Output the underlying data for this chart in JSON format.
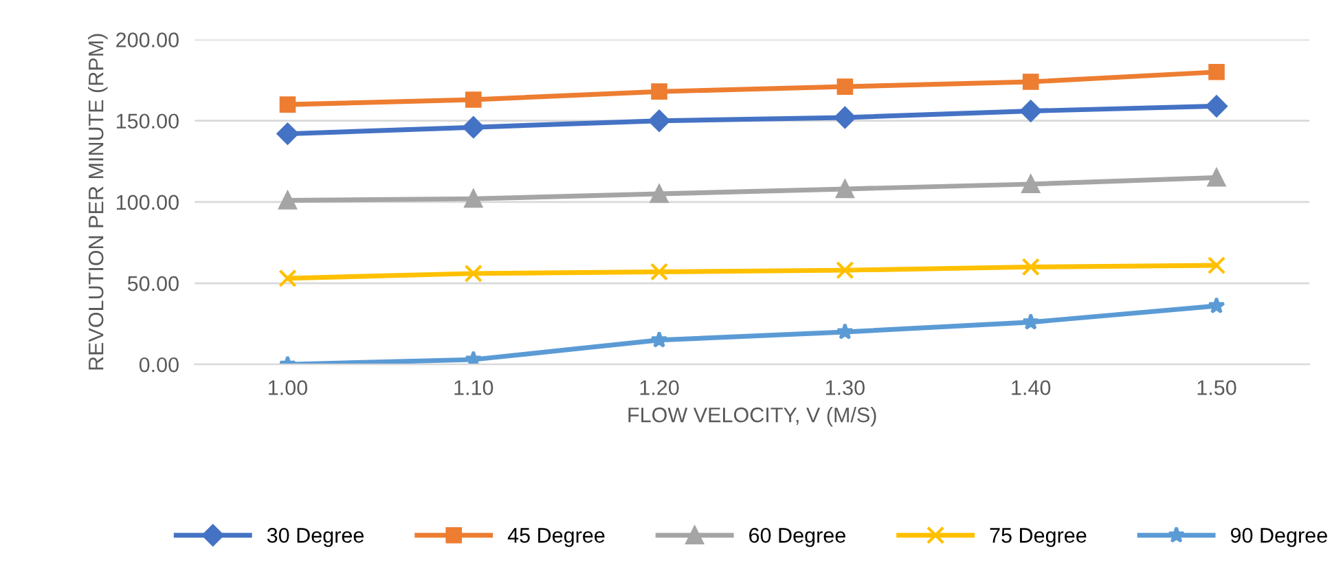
{
  "chart_data": {
    "type": "line",
    "xlabel": "FLOW VELOCITY, V (M/S)",
    "ylabel": "REVOLUTION PER MINUTE (RPM)",
    "categories": [
      "1.00",
      "1.10",
      "1.20",
      "1.30",
      "1.40",
      "1.50"
    ],
    "series": [
      {
        "name": "30 Degree",
        "color": "#4472c4",
        "marker": "diamond",
        "values": [
          142,
          146,
          150,
          152,
          156,
          159
        ]
      },
      {
        "name": "45 Degree",
        "color": "#ed7d31",
        "marker": "square",
        "values": [
          160,
          163,
          168,
          171,
          174,
          180
        ]
      },
      {
        "name": "60 Degree",
        "color": "#a5a5a5",
        "marker": "triangle",
        "values": [
          101,
          102,
          105,
          108,
          111,
          115
        ]
      },
      {
        "name": "75 Degree",
        "color": "#ffc000",
        "marker": "cross",
        "values": [
          53,
          56,
          57,
          58,
          60,
          61
        ]
      },
      {
        "name": "90 Degree",
        "color": "#5b9bd5",
        "marker": "star",
        "values": [
          0,
          3,
          15,
          20,
          26,
          36
        ]
      }
    ],
    "ylim": [
      0,
      200
    ],
    "yticks": [
      {
        "value": 0,
        "label": "0.00"
      },
      {
        "value": 50,
        "label": "50.00"
      },
      {
        "value": 100,
        "label": "100.00"
      },
      {
        "value": 150,
        "label": "150.00"
      },
      {
        "value": 200,
        "label": "200.00"
      }
    ],
    "grid": "y",
    "legend": "bottom",
    "line_style": "solid"
  }
}
